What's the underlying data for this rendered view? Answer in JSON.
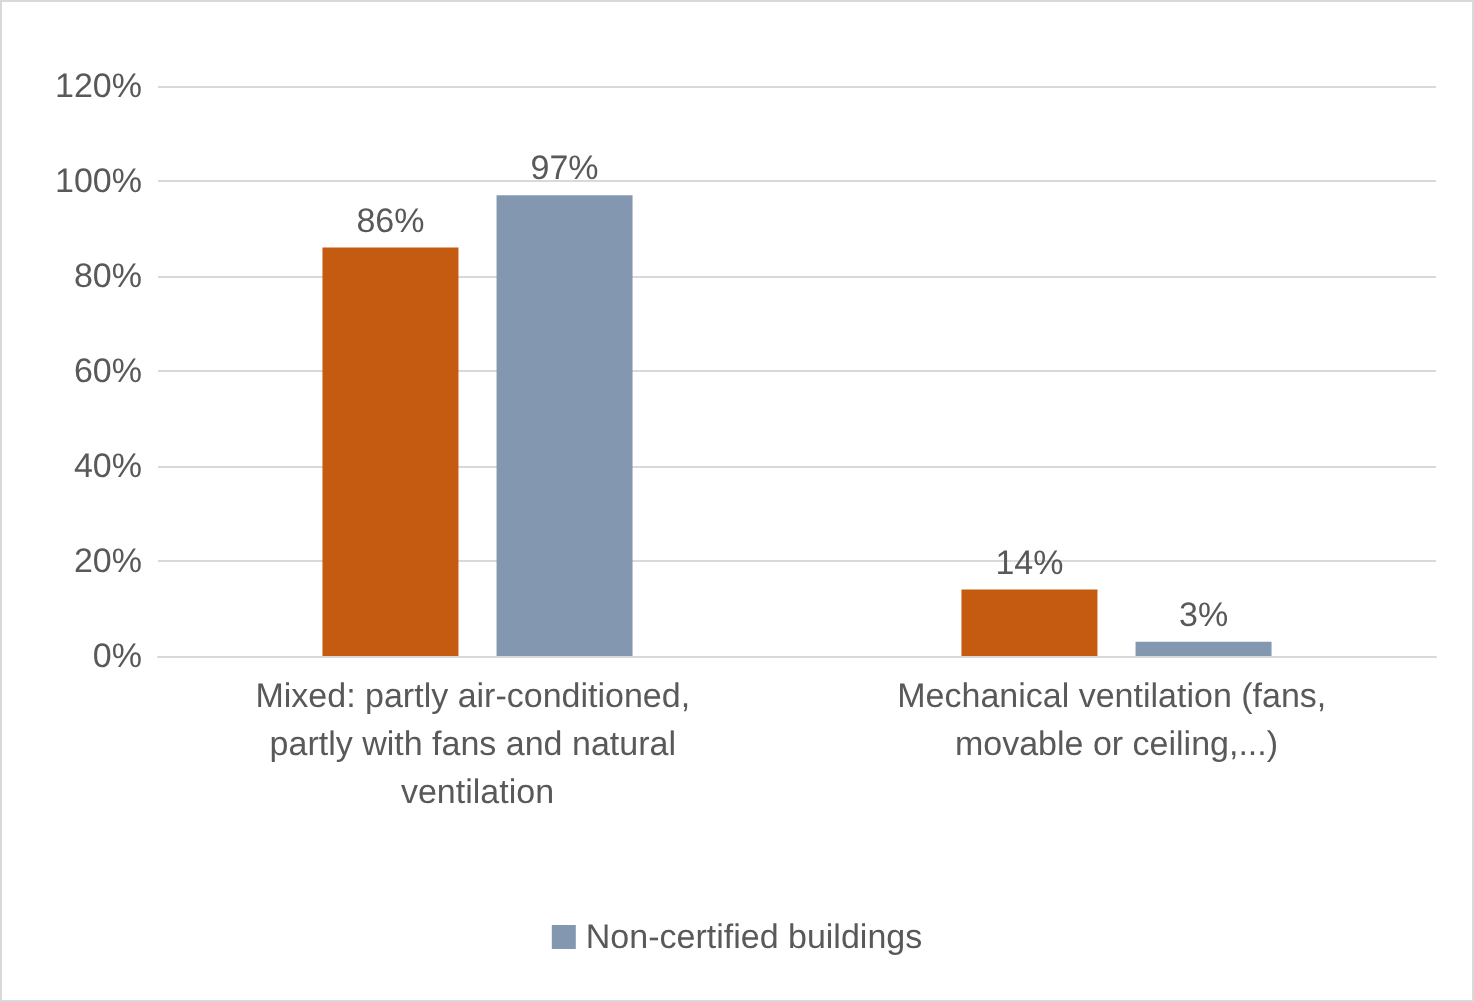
{
  "chart_data": {
    "type": "bar",
    "categories": [
      "Mixed: partly air-conditioned, partly with fans and natural ventilation",
      "Mechanical ventilation (fans, movable or ceiling,...)"
    ],
    "series": [
      {
        "color": "#c55a11",
        "values": [
          86,
          14
        ],
        "value_labels": [
          "86%",
          "14%"
        ]
      },
      {
        "name": "Non-certified buildings",
        "color": "#8497b0",
        "values": [
          97,
          3
        ],
        "value_labels": [
          "97%",
          "3%"
        ]
      }
    ],
    "ylim": [
      0,
      120
    ],
    "yticks": [
      {
        "value": 0,
        "label": "0%"
      },
      {
        "value": 20,
        "label": "20%"
      },
      {
        "value": 40,
        "label": "40%"
      },
      {
        "value": 60,
        "label": "60%"
      },
      {
        "value": 80,
        "label": "80%"
      },
      {
        "value": 100,
        "label": "100%"
      },
      {
        "value": 120,
        "label": "120%"
      }
    ],
    "grid": "y",
    "legend": "bottom"
  }
}
